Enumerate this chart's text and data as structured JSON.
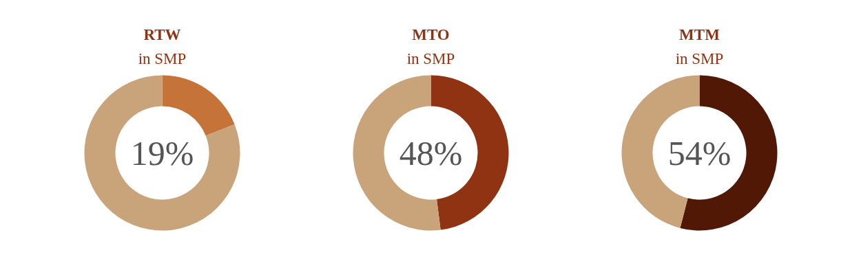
{
  "chart_data": [
    {
      "type": "donut",
      "title": "RTW",
      "subtitle": "in SMP",
      "categories": [
        null,
        null
      ],
      "values": [
        19,
        81
      ],
      "colors": [
        "#c6733a",
        "#c9a47b"
      ],
      "annotations": [
        "19%"
      ]
    },
    {
      "type": "donut",
      "title": "MTO",
      "subtitle": "in SMP",
      "categories": [
        null,
        null
      ],
      "values": [
        48,
        52
      ],
      "colors": [
        "#8f3313",
        "#c9a47b"
      ],
      "annotations": [
        "48%"
      ]
    },
    {
      "type": "donut",
      "title": "MTM",
      "subtitle": "in SMP",
      "categories": [
        null,
        null
      ],
      "values": [
        54,
        46
      ],
      "colors": [
        "#511806",
        "#c9a47b"
      ],
      "annotations": [
        "54%"
      ]
    }
  ]
}
